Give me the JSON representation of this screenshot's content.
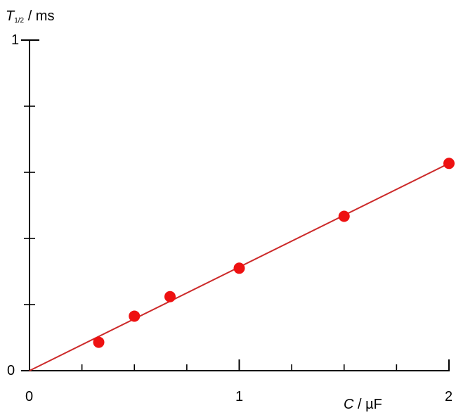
{
  "chart_data": {
    "type": "scatter",
    "ylabel": {
      "symbol": "T",
      "subscript": "1/2",
      "unit": "/ ms"
    },
    "xlabel": {
      "symbol": "C",
      "unit": "/ µF"
    },
    "xlim": [
      0,
      2
    ],
    "ylim": [
      0,
      1
    ],
    "x_major_ticks": [
      0,
      1,
      2
    ],
    "x_tick_labels": [
      "0",
      "1",
      "2"
    ],
    "x_minor_ticks": [
      0.25,
      0.5,
      0.75,
      1.25,
      1.5,
      1.75
    ],
    "y_major_ticks": [
      0,
      1
    ],
    "y_tick_labels": [
      "0",
      "1"
    ],
    "y_minor_ticks": [
      0.2,
      0.4,
      0.6,
      0.8
    ],
    "grid": false,
    "series": [
      {
        "points": [
          {
            "x": 0.33,
            "y": 0.086
          },
          {
            "x": 0.5,
            "y": 0.165
          },
          {
            "x": 0.67,
            "y": 0.224
          },
          {
            "x": 1.0,
            "y": 0.31
          },
          {
            "x": 1.5,
            "y": 0.467
          },
          {
            "x": 2.0,
            "y": 0.627
          }
        ],
        "marker_color": "#ee1111"
      }
    ],
    "fit_line": {
      "x": [
        0,
        2
      ],
      "y": [
        0,
        0.627
      ],
      "color": "#cc2a2a"
    },
    "axis_color": "#000000"
  }
}
